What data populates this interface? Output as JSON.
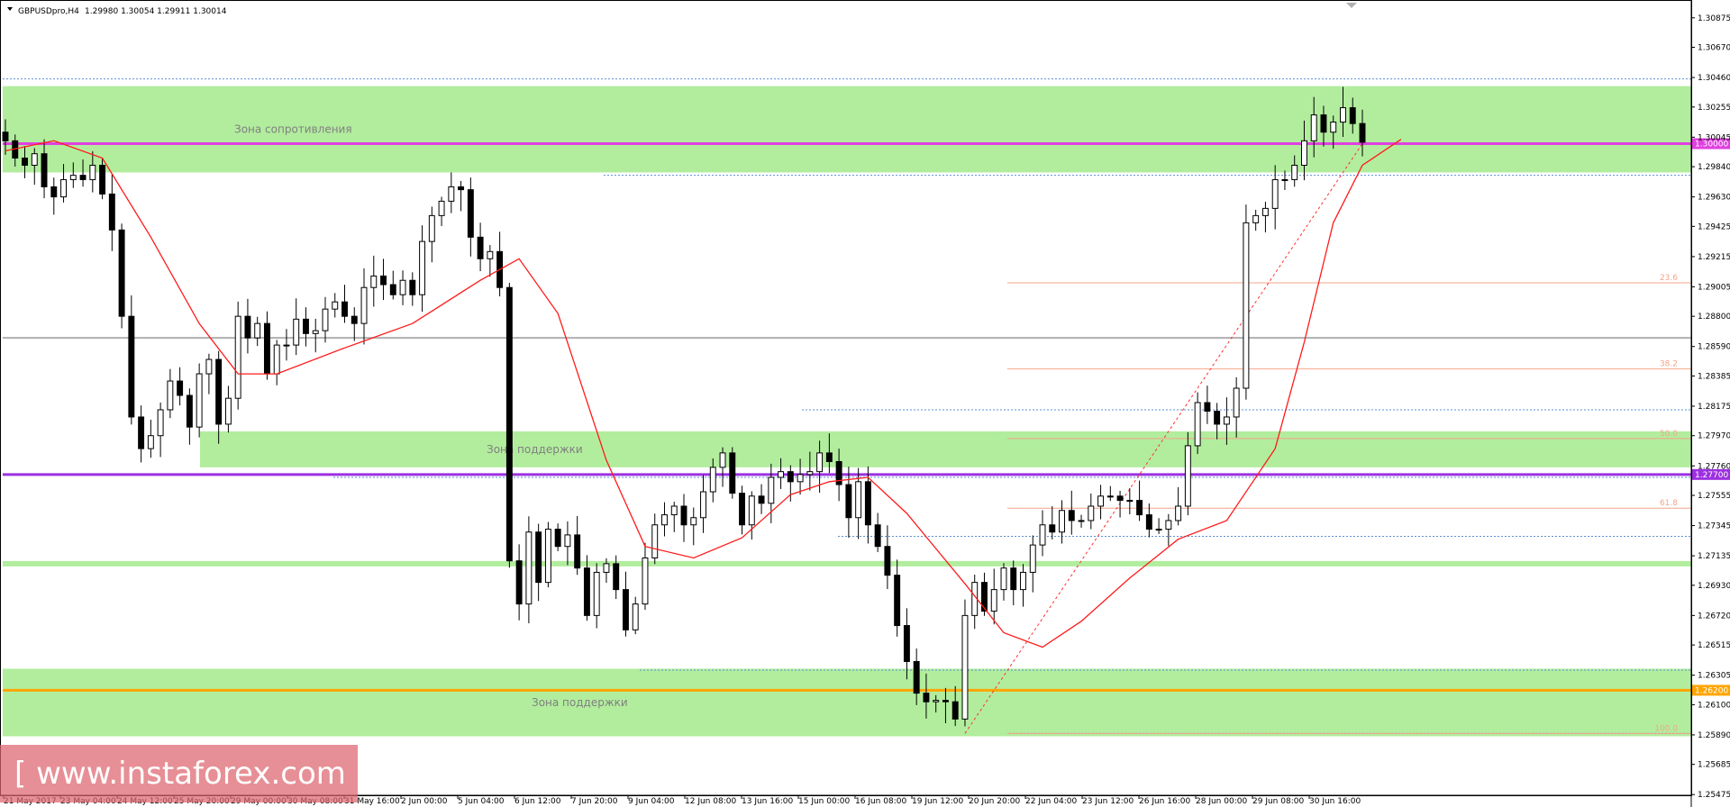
{
  "header": {
    "symbol": "GBPUSDpro,H4",
    "ohlc": "1.29980 1.30054 1.29911 1.30014"
  },
  "watermark": "[ www.instaforex.com ]",
  "colors": {
    "zone": "#b2ed9e",
    "candle": "#000000",
    "ma": "#ff1a1a",
    "fib": "#f4a48a",
    "purple": "#9d30e0",
    "magenta": "#e040e0",
    "orange": "#ffa500",
    "gray": "#b0b0b0",
    "dotted": "#5a8fd6"
  },
  "chart_data": {
    "type": "candlestick",
    "instrument": "GBPUSDpro",
    "timeframe": "H4",
    "ylim": [
      1.2547,
      1.3098
    ],
    "price_ticks": [
      "1.30875",
      "1.30670",
      "1.30460",
      "1.30255",
      "1.30045",
      "1.29840",
      "1.29630",
      "1.29425",
      "1.29215",
      "1.29005",
      "1.28800",
      "1.28590",
      "1.28385",
      "1.28175",
      "1.27970",
      "1.27760",
      "1.27555",
      "1.27345",
      "1.27135",
      "1.26930",
      "1.26720",
      "1.26515",
      "1.26305",
      "1.26100",
      "1.25890",
      "1.25685",
      "1.25475"
    ],
    "time_labels": [
      "21 May 2017",
      "23 May 04:00",
      "24 May 12:00",
      "25 May 20:00",
      "29 May 00:00",
      "30 May 08:00",
      "31 May 16:00",
      "2 Jun 00:00",
      "5 Jun 04:00",
      "6 Jun 12:00",
      "7 Jun 20:00",
      "9 Jun 04:00",
      "12 Jun 08:00",
      "13 Jun 16:00",
      "15 Jun 00:00",
      "16 Jun 08:00",
      "19 Jun 12:00",
      "20 Jun 20:00",
      "22 Jun 04:00",
      "23 Jun 12:00",
      "26 Jun 16:00",
      "28 Jun 00:00",
      "29 Jun 08:00",
      "30 Jun 16:00"
    ],
    "close_path": [
      1.3002,
      1.299,
      1.2985,
      1.2993,
      1.297,
      1.2963,
      1.2975,
      1.2978,
      1.2975,
      1.2985,
      1.2965,
      1.294,
      1.288,
      1.281,
      1.2788,
      1.2797,
      1.2815,
      1.2835,
      1.2825,
      1.2803,
      1.284,
      1.285,
      1.2805,
      1.2823,
      1.288,
      1.2865,
      1.2875,
      1.284,
      1.286,
      1.286,
      1.2878,
      1.2868,
      1.287,
      1.2885,
      1.289,
      1.288,
      1.2875,
      1.29,
      1.2908,
      1.2902,
      1.2895,
      1.2905,
      1.2895,
      1.2932,
      1.295,
      1.296,
      1.297,
      1.2968,
      1.2935,
      1.292,
      1.2925,
      1.29,
      1.271,
      1.268,
      1.273,
      1.2695,
      1.2732,
      1.272,
      1.2728,
      1.2705,
      1.2672,
      1.2702,
      1.2708,
      1.269,
      1.2662,
      1.268,
      1.2712,
      1.2735,
      1.2742,
      1.2748,
      1.2735,
      1.274,
      1.2758,
      1.2775,
      1.2785,
      1.2757,
      1.2735,
      1.2755,
      1.275,
      1.2768,
      1.2772,
      1.2765,
      1.277,
      1.2772,
      1.2785,
      1.2779,
      1.2763,
      1.274,
      1.2765,
      1.2735,
      1.272,
      1.27,
      1.2665,
      1.264,
      1.2618,
      1.2612,
      1.2613,
      1.2612,
      1.26,
      1.2672,
      1.2695,
      1.2675,
      1.269,
      1.2705,
      1.269,
      1.2702,
      1.2721,
      1.2735,
      1.273,
      1.2745,
      1.2738,
      1.2738,
      1.2748,
      1.2755,
      1.2755,
      1.2752,
      1.2752,
      1.2742,
      1.2732,
      1.2732,
      1.2738,
      1.2748,
      1.279,
      1.282,
      1.2814,
      1.2805,
      1.281,
      1.283,
      1.2945,
      1.295,
      1.2955,
      1.2975,
      1.2975,
      1.2985,
      1.3002,
      1.302,
      1.3008,
      1.3015,
      1.3025,
      1.3014,
      1.3001
    ],
    "moving_average": {
      "color": "#ff1a1a",
      "points": [
        [
          0,
          1.2995
        ],
        [
          5,
          1.3002
        ],
        [
          10,
          1.299
        ],
        [
          15,
          1.2935
        ],
        [
          20,
          1.2875
        ],
        [
          24,
          1.284
        ],
        [
          28,
          1.284
        ],
        [
          35,
          1.2858
        ],
        [
          42,
          1.2875
        ],
        [
          49,
          1.2905
        ],
        [
          53,
          1.292
        ],
        [
          57,
          1.2882
        ],
        [
          62,
          1.278
        ],
        [
          66,
          1.272
        ],
        [
          71,
          1.2712
        ],
        [
          76,
          1.2726
        ],
        [
          81,
          1.2756
        ],
        [
          85,
          1.2765
        ],
        [
          89,
          1.2768
        ],
        [
          93,
          1.2743
        ],
        [
          99,
          1.2694
        ],
        [
          103,
          1.266
        ],
        [
          107,
          1.265
        ],
        [
          111,
          1.2668
        ],
        [
          116,
          1.2698
        ],
        [
          121,
          1.2725
        ],
        [
          126,
          1.2738
        ],
        [
          131,
          1.2788
        ],
        [
          134,
          1.2862
        ],
        [
          137,
          1.2945
        ],
        [
          140,
          1.2985
        ],
        [
          144,
          1.3003
        ]
      ]
    },
    "horizontal_levels": [
      {
        "price": 1.3,
        "label": "1.30000",
        "color": "#e040e0"
      },
      {
        "price": 1.277,
        "label": "1.27700",
        "color": "#9d30e0"
      },
      {
        "price": 1.262,
        "label": "1.26200",
        "color": "#ffa500"
      },
      {
        "price": 1.2865,
        "label": "",
        "color": "#b0b0b0"
      },
      {
        "price": 1.2708,
        "label": "",
        "color": "#b2ed9e"
      }
    ],
    "zones": [
      {
        "from": 1.298,
        "to": 1.304,
        "label": "Зона сопротивления"
      },
      {
        "from": 1.2775,
        "to": 1.28,
        "label": "Зона поддержки"
      },
      {
        "from": 1.2588,
        "to": 1.2635,
        "label": "Зона поддержки"
      }
    ],
    "fibonacci": {
      "low": 1.259,
      "high": 1.3,
      "levels": [
        {
          "ratio": 0.236,
          "label": "23.6"
        },
        {
          "ratio": 0.382,
          "label": "38.2"
        },
        {
          "ratio": 0.5,
          "label": "50.0"
        },
        {
          "ratio": 0.618,
          "label": "61.8"
        },
        {
          "ratio": 1.0,
          "label": "100.0"
        }
      ]
    }
  }
}
